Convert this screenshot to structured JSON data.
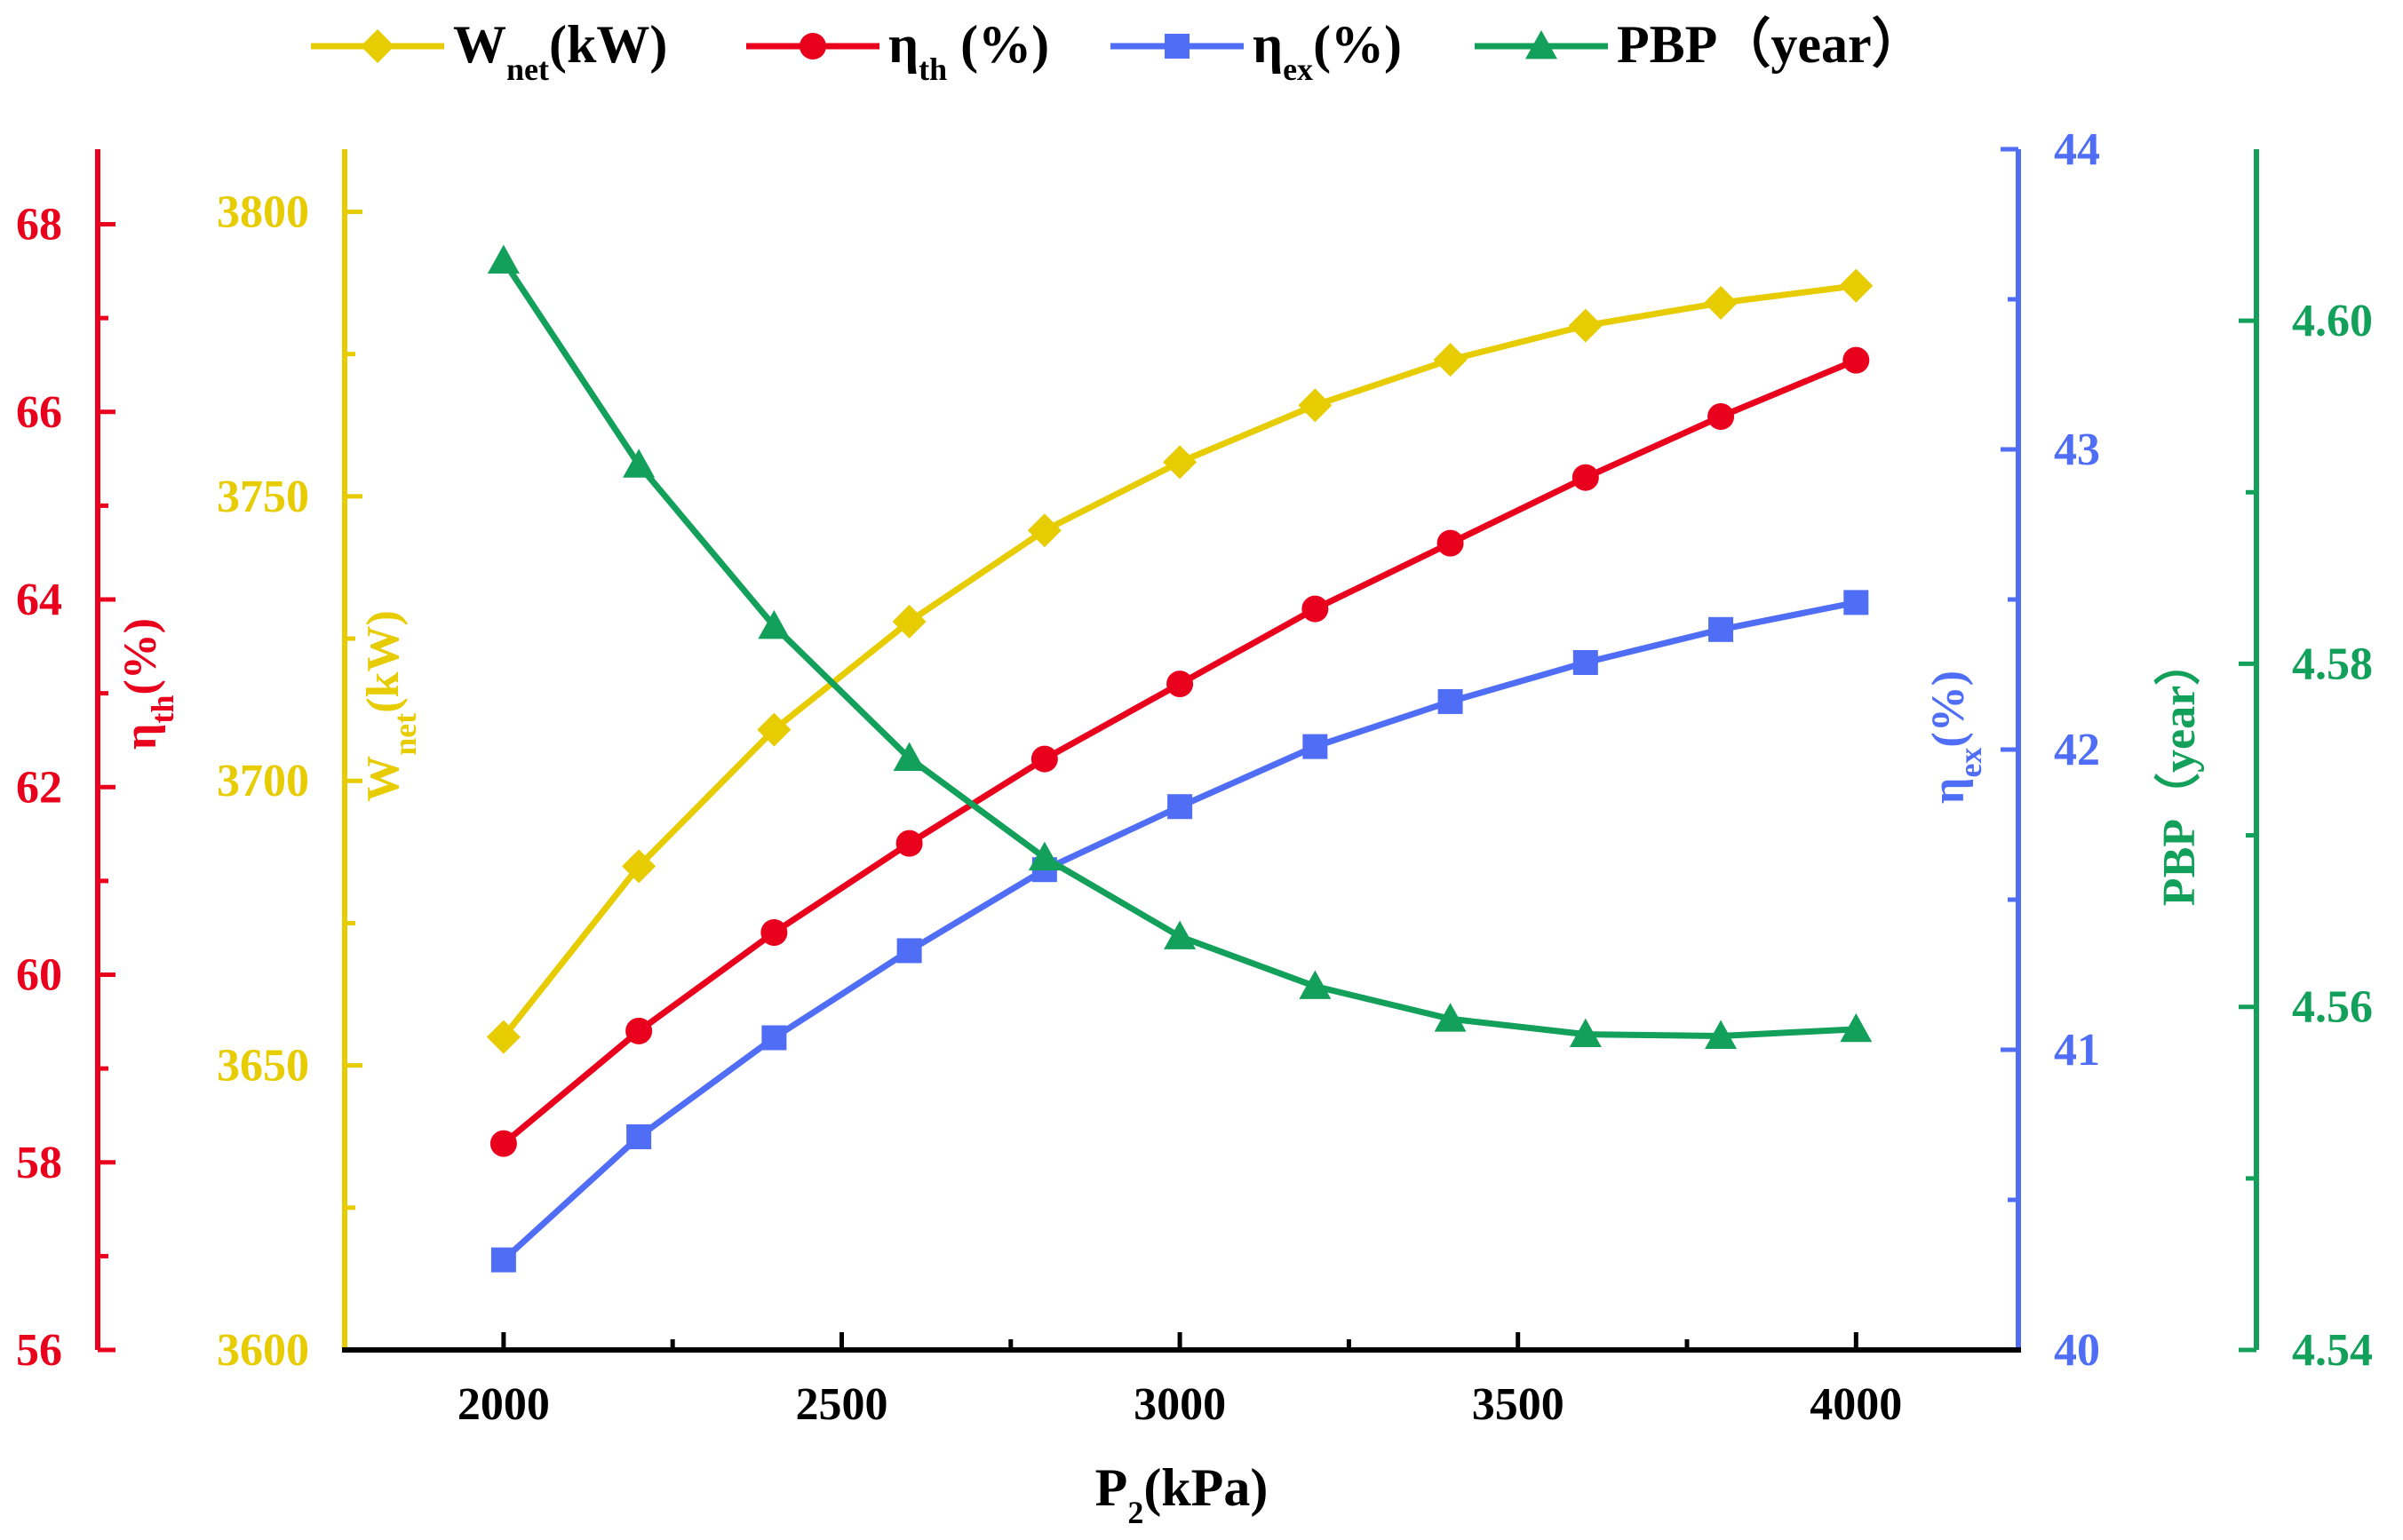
{
  "chart_data": {
    "type": "line",
    "x": [
      2000,
      2200,
      2400,
      2600,
      2800,
      3000,
      3200,
      3400,
      3600,
      3800,
      4000
    ],
    "xlabel": {
      "main": "P",
      "sub": "2",
      "rest": "(kPa)"
    },
    "xlim": [
      1765,
      4240
    ],
    "xticks": [
      2000,
      2500,
      3000,
      3500,
      4000
    ],
    "series": [
      {
        "key": "wnet",
        "legend": {
          "main": "W",
          "sub": "net",
          "rest": "(kW)"
        },
        "color": "#E6CC00",
        "marker": "diamond",
        "values": [
          3655,
          3685,
          3709,
          3728,
          3744,
          3756,
          3766,
          3774,
          3780,
          3784,
          3787
        ]
      },
      {
        "key": "eta_th",
        "legend": {
          "main": "η",
          "sub": "th",
          "rest": " (%)"
        },
        "color": "#E8001C",
        "marker": "circle",
        "values": [
          58.2,
          59.4,
          60.45,
          61.4,
          62.3,
          63.1,
          63.9,
          64.6,
          65.3,
          65.95,
          66.55
        ]
      },
      {
        "key": "eta_ex",
        "legend": {
          "main": "η",
          "sub": "ex",
          "rest": "(%)"
        },
        "color": "#4F6EF5",
        "marker": "square",
        "values": [
          40.3,
          40.71,
          41.04,
          41.33,
          41.6,
          41.81,
          42.01,
          42.16,
          42.29,
          42.4,
          42.49
        ]
      },
      {
        "key": "pbp",
        "legend": {
          "main": "PBP（year）",
          "sub": "",
          "rest": ""
        },
        "color": "#13A05A",
        "marker": "triangle",
        "values": [
          4.6035,
          4.5916,
          4.5822,
          4.5745,
          4.5687,
          4.5641,
          4.5612,
          4.5593,
          4.5584,
          4.5583,
          4.5587
        ]
      }
    ],
    "axes": [
      {
        "key": "eta_th",
        "label": {
          "main": "η",
          "sub": "th",
          "rest": "(%)"
        },
        "color": "#E8001C",
        "ylim": [
          56,
          68.8
        ],
        "ticks": [
          56,
          58,
          60,
          62,
          64,
          66,
          68
        ],
        "tick_labels": [
          "56",
          "58",
          "60",
          "62",
          "64",
          "66",
          "68"
        ]
      },
      {
        "key": "wnet",
        "label": {
          "main": "W",
          "sub": "net",
          "rest": "(kW)"
        },
        "color": "#E6CC00",
        "ylim": [
          3600,
          3811
        ],
        "ticks": [
          3600,
          3650,
          3700,
          3750,
          3800
        ],
        "tick_labels": [
          "3600",
          "3650",
          "3700",
          "3750",
          "3800"
        ]
      },
      {
        "key": "eta_ex",
        "label": {
          "main": "η",
          "sub": "ex",
          "rest": "(%)"
        },
        "color": "#4F6EF5",
        "ylim": [
          40,
          44
        ],
        "ticks": [
          40,
          41,
          42,
          43,
          44
        ],
        "tick_labels": [
          "40",
          "41",
          "42",
          "43",
          "44"
        ]
      },
      {
        "key": "pbp",
        "label": {
          "main": "PBP（year）",
          "sub": "",
          "rest": ""
        },
        "color": "#13A05A",
        "ylim": [
          4.54,
          4.61
        ],
        "ticks": [
          4.54,
          4.56,
          4.58,
          4.6
        ],
        "tick_labels": [
          "4.54",
          "4.56",
          "4.58",
          "4.60"
        ]
      }
    ]
  }
}
